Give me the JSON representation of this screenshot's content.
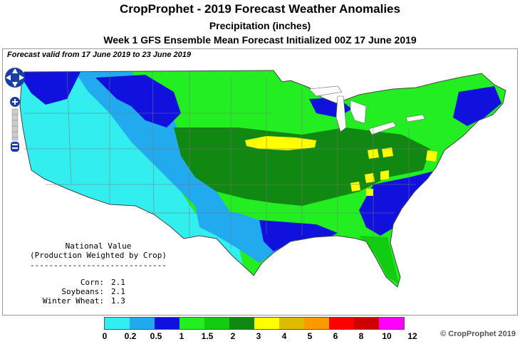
{
  "header": {
    "title": "CropProphet - 2019 Forecast Weather Anomalies",
    "variable": "Precipitation (inches)",
    "subtitle": "Week 1 GFS Ensemble Mean Forecast Initialized 00Z 17 June 2019"
  },
  "map": {
    "valid_text": "Forecast valid from 17 June 2019 to 23 June 2019",
    "region": "Contiguous United States",
    "nav_icons": [
      "pan-arrows-icon",
      "zoom-in-icon",
      "zoom-slider-icon",
      "zoom-out-icon"
    ]
  },
  "national": {
    "title": "National Value",
    "subtitle": "(Production Weighted by Crop)",
    "divider": "-----------------------------",
    "crops": [
      {
        "name": "Corn:",
        "value": "2.1"
      },
      {
        "name": "Soybeans:",
        "value": "2.1"
      },
      {
        "name": "Winter Wheat:",
        "value": "1.3"
      }
    ]
  },
  "legend": {
    "ticks": [
      "0",
      "0.2",
      "0.5",
      "1",
      "1.5",
      "2",
      "3",
      "4",
      "5",
      "6",
      "8",
      "10",
      "12"
    ],
    "colors": [
      "#33eeee",
      "#22aaee",
      "#1111dd",
      "#22ee22",
      "#11cc11",
      "#118811",
      "#ffff00",
      "#ddbb00",
      "#ff9900",
      "#ff0000",
      "#cc0000",
      "#ff00ff"
    ]
  },
  "copyright": "© CropProphet 2019"
}
